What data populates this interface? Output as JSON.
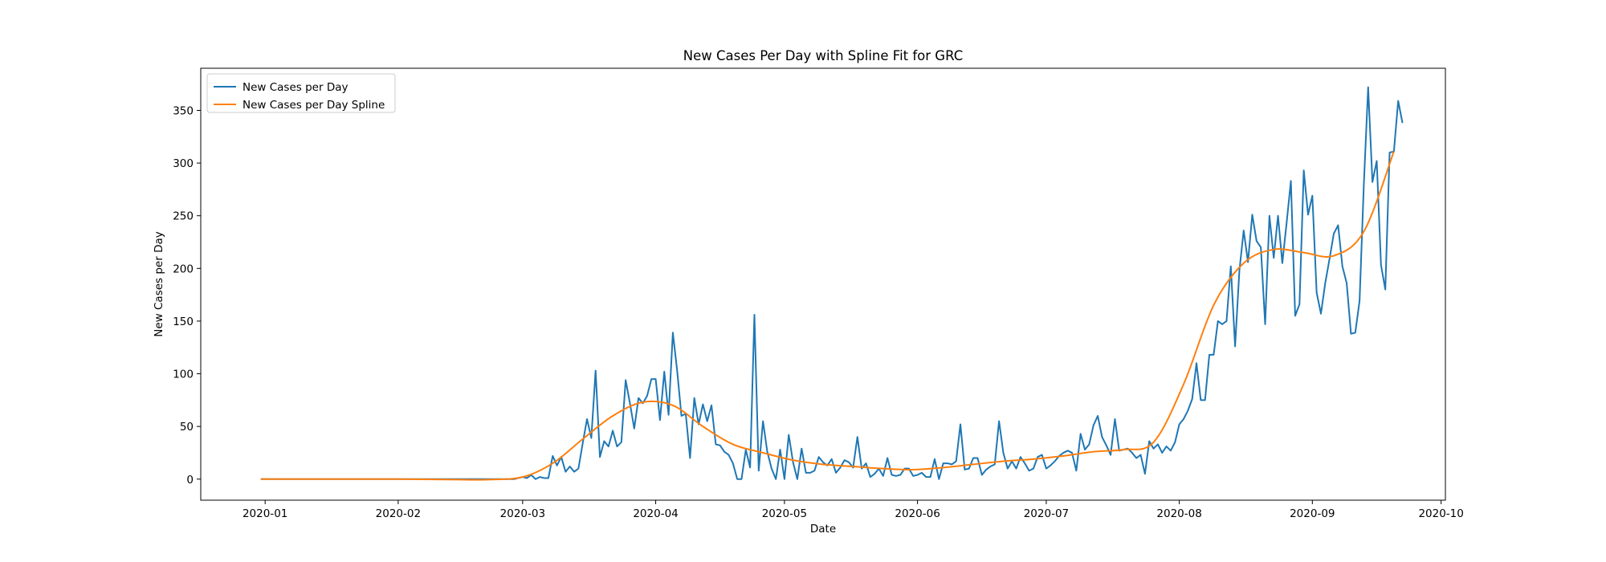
{
  "chart_data": {
    "type": "line",
    "title": "New Cases Per Day with Spline Fit for GRC",
    "xlabel": "Date",
    "ylabel": "New Cases per Day",
    "xlim": [
      "2019-12-17",
      "2020-10-02"
    ],
    "ylim": [
      -20,
      390
    ],
    "x_ticks": [
      "2020-01",
      "2020-02",
      "2020-03",
      "2020-04",
      "2020-05",
      "2020-06",
      "2020-07",
      "2020-08",
      "2020-09",
      "2020-10"
    ],
    "y_ticks": [
      0,
      50,
      100,
      150,
      200,
      250,
      300,
      350
    ],
    "grid": false,
    "legend_position": "upper left",
    "series": [
      {
        "name": "New Cases per Day",
        "color": "#1f77b4",
        "x_start": "2019-12-31",
        "step_days": 1,
        "values": [
          0,
          0,
          0,
          0,
          0,
          0,
          0,
          0,
          0,
          0,
          0,
          0,
          0,
          0,
          0,
          0,
          0,
          0,
          0,
          0,
          0,
          0,
          0,
          0,
          0,
          0,
          0,
          0,
          0,
          0,
          0,
          0,
          0,
          0,
          0,
          0,
          0,
          0,
          0,
          0,
          0,
          0,
          0,
          0,
          0,
          0,
          0,
          0,
          0,
          0,
          0,
          0,
          0,
          0,
          0,
          0,
          0,
          0,
          0,
          0,
          1,
          2,
          1,
          4,
          0,
          2,
          1,
          1,
          22,
          13,
          21,
          7,
          12,
          7,
          10,
          34,
          57,
          39,
          103,
          21,
          36,
          31,
          46,
          31,
          35,
          94,
          72,
          48,
          77,
          72,
          79,
          95,
          95,
          56,
          102,
          61,
          139,
          103,
          60,
          62,
          20,
          77,
          52,
          71,
          55,
          70,
          33,
          32,
          26,
          23,
          15,
          0,
          0,
          28,
          11,
          156,
          8,
          55,
          26,
          10,
          0,
          28,
          0,
          42,
          16,
          0,
          29,
          6,
          6,
          8,
          21,
          16,
          13,
          19,
          6,
          11,
          18,
          16,
          11,
          40,
          10,
          15,
          2,
          5,
          10,
          3,
          20,
          4,
          3,
          4,
          10,
          10,
          3,
          4,
          6,
          2,
          2,
          19,
          0,
          15,
          15,
          14,
          17,
          52,
          9,
          10,
          20,
          20,
          4,
          9,
          12,
          14,
          55,
          25,
          10,
          17,
          10,
          21,
          15,
          8,
          10,
          21,
          23,
          10,
          13,
          17,
          22,
          25,
          27,
          25,
          8,
          43,
          28,
          33,
          51,
          60,
          40,
          32,
          23,
          57,
          27,
          28,
          29,
          25,
          20,
          23,
          5,
          36,
          29,
          33,
          25,
          31,
          27,
          35,
          52,
          57,
          65,
          76,
          110,
          75,
          75,
          118,
          118,
          150,
          147,
          150,
          202,
          126,
          198,
          236,
          206,
          251,
          226,
          220,
          147,
          250,
          210,
          250,
          205,
          243,
          283,
          155,
          166,
          293,
          251,
          269,
          177,
          157,
          186,
          209,
          233,
          241,
          202,
          186,
          138,
          139,
          169,
          280,
          372,
          282,
          302,
          203,
          180,
          310,
          311,
          359,
          338
        ]
      },
      {
        "name": "New Cases per Day Spline",
        "color": "#ff7f0e",
        "knots_x": [
          "2019-12-31",
          "2020-01-15",
          "2020-02-01",
          "2020-02-15",
          "2020-02-22",
          "2020-03-01",
          "2020-03-08",
          "2020-03-15",
          "2020-03-22",
          "2020-03-29",
          "2020-04-05",
          "2020-04-12",
          "2020-04-19",
          "2020-04-26",
          "2020-05-03",
          "2020-05-10",
          "2020-05-17",
          "2020-05-24",
          "2020-05-31",
          "2020-06-07",
          "2020-06-14",
          "2020-06-21",
          "2020-06-28",
          "2020-07-05",
          "2020-07-12",
          "2020-07-19",
          "2020-07-26",
          "2020-08-02",
          "2020-08-09",
          "2020-08-16",
          "2020-08-23",
          "2020-08-30",
          "2020-09-06",
          "2020-09-13",
          "2020-09-20"
        ],
        "knots_y": [
          0,
          0,
          0,
          -0.5,
          -0.5,
          2,
          15,
          38,
          60,
          73,
          70,
          50,
          33,
          25,
          18,
          14,
          12,
          10,
          9,
          11,
          14,
          17,
          19,
          22,
          26,
          28,
          35,
          90,
          165,
          205,
          218,
          215,
          212,
          235,
          311
        ]
      }
    ]
  }
}
